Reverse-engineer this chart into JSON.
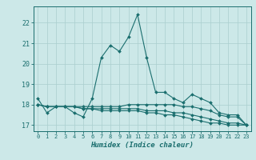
{
  "xlabel": "Humidex (Indice chaleur)",
  "background_color": "#cce8e8",
  "line_color": "#1a6e6e",
  "grid_color": "#aacece",
  "xlim": [
    -0.5,
    23.5
  ],
  "ylim": [
    16.7,
    22.8
  ],
  "yticks": [
    17,
    18,
    19,
    20,
    21,
    22
  ],
  "xticks": [
    0,
    1,
    2,
    3,
    4,
    5,
    6,
    7,
    8,
    9,
    10,
    11,
    12,
    13,
    14,
    15,
    16,
    17,
    18,
    19,
    20,
    21,
    22,
    23
  ],
  "series": [
    [
      18.3,
      17.6,
      17.9,
      17.9,
      17.6,
      17.4,
      18.3,
      20.3,
      20.9,
      20.6,
      21.3,
      22.4,
      20.3,
      18.6,
      18.6,
      18.3,
      18.1,
      18.5,
      18.3,
      18.1,
      17.6,
      17.5,
      17.5,
      17.0
    ],
    [
      18.0,
      17.9,
      17.9,
      17.9,
      17.9,
      17.9,
      17.9,
      17.9,
      17.9,
      17.9,
      18.0,
      18.0,
      18.0,
      18.0,
      18.0,
      18.0,
      17.9,
      17.9,
      17.8,
      17.7,
      17.5,
      17.4,
      17.4,
      17.0
    ],
    [
      18.0,
      17.9,
      17.9,
      17.9,
      17.9,
      17.8,
      17.8,
      17.8,
      17.8,
      17.8,
      17.8,
      17.8,
      17.7,
      17.7,
      17.7,
      17.6,
      17.6,
      17.5,
      17.4,
      17.3,
      17.2,
      17.1,
      17.1,
      17.0
    ],
    [
      18.0,
      17.9,
      17.9,
      17.9,
      17.9,
      17.8,
      17.8,
      17.7,
      17.7,
      17.7,
      17.7,
      17.7,
      17.6,
      17.6,
      17.5,
      17.5,
      17.4,
      17.3,
      17.2,
      17.1,
      17.1,
      17.0,
      17.0,
      17.0
    ]
  ]
}
